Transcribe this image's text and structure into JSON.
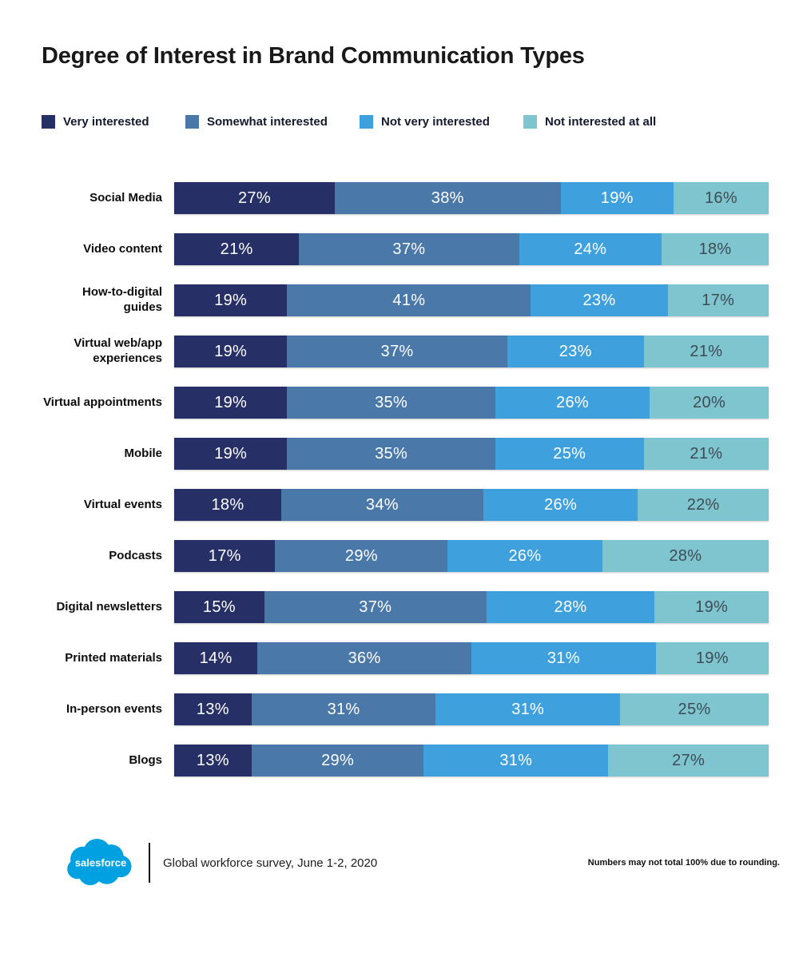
{
  "title": "Degree of Interest in Brand Communication Types",
  "legend": [
    {
      "label": "Very interested",
      "color": "#262F66"
    },
    {
      "label": "Somewhat interested",
      "color": "#4A78A9"
    },
    {
      "label": "Not very interested",
      "color": "#3FA0DE"
    },
    {
      "label": "Not interested at all",
      "color": "#7FC5CF"
    }
  ],
  "chart_data": {
    "type": "bar",
    "stacked": true,
    "orientation": "horizontal",
    "title": "Degree of Interest in Brand Communication Types",
    "unit": "%",
    "value_suffix": "%",
    "xlim": [
      0,
      100
    ],
    "grid": false,
    "legend_position": "top",
    "categories": [
      "Social Media",
      "Video content",
      "How-to-digital guides",
      "Virtual web/app experiences",
      "Virtual appointments",
      "Mobile",
      "Virtual events",
      "Podcasts",
      "Digital newsletters",
      "Printed materials",
      "In-person events",
      "Blogs"
    ],
    "series": [
      {
        "name": "Very interested",
        "color": "#262F66",
        "label_color": "#ffffff",
        "values": [
          27,
          21,
          19,
          19,
          19,
          19,
          18,
          17,
          15,
          14,
          13,
          13
        ]
      },
      {
        "name": "Somewhat interested",
        "color": "#4A78A9",
        "label_color": "#ffffff",
        "values": [
          38,
          37,
          41,
          37,
          35,
          35,
          34,
          29,
          37,
          36,
          31,
          29
        ]
      },
      {
        "name": "Not very interested",
        "color": "#3FA0DE",
        "label_color": "#ffffff",
        "values": [
          19,
          24,
          23,
          23,
          26,
          25,
          26,
          26,
          28,
          31,
          31,
          31
        ]
      },
      {
        "name": "Not interested at all",
        "color": "#7FC5CF",
        "label_color": "#3D4B54",
        "values": [
          16,
          18,
          17,
          21,
          20,
          21,
          22,
          28,
          19,
          19,
          25,
          27
        ]
      }
    ]
  },
  "footer": {
    "logo_text": "salesforce",
    "logo_color": "#00A1E0",
    "source": "Global workforce survey, June 1-2, 2020",
    "note": "Numbers may not total 100% due to rounding."
  }
}
